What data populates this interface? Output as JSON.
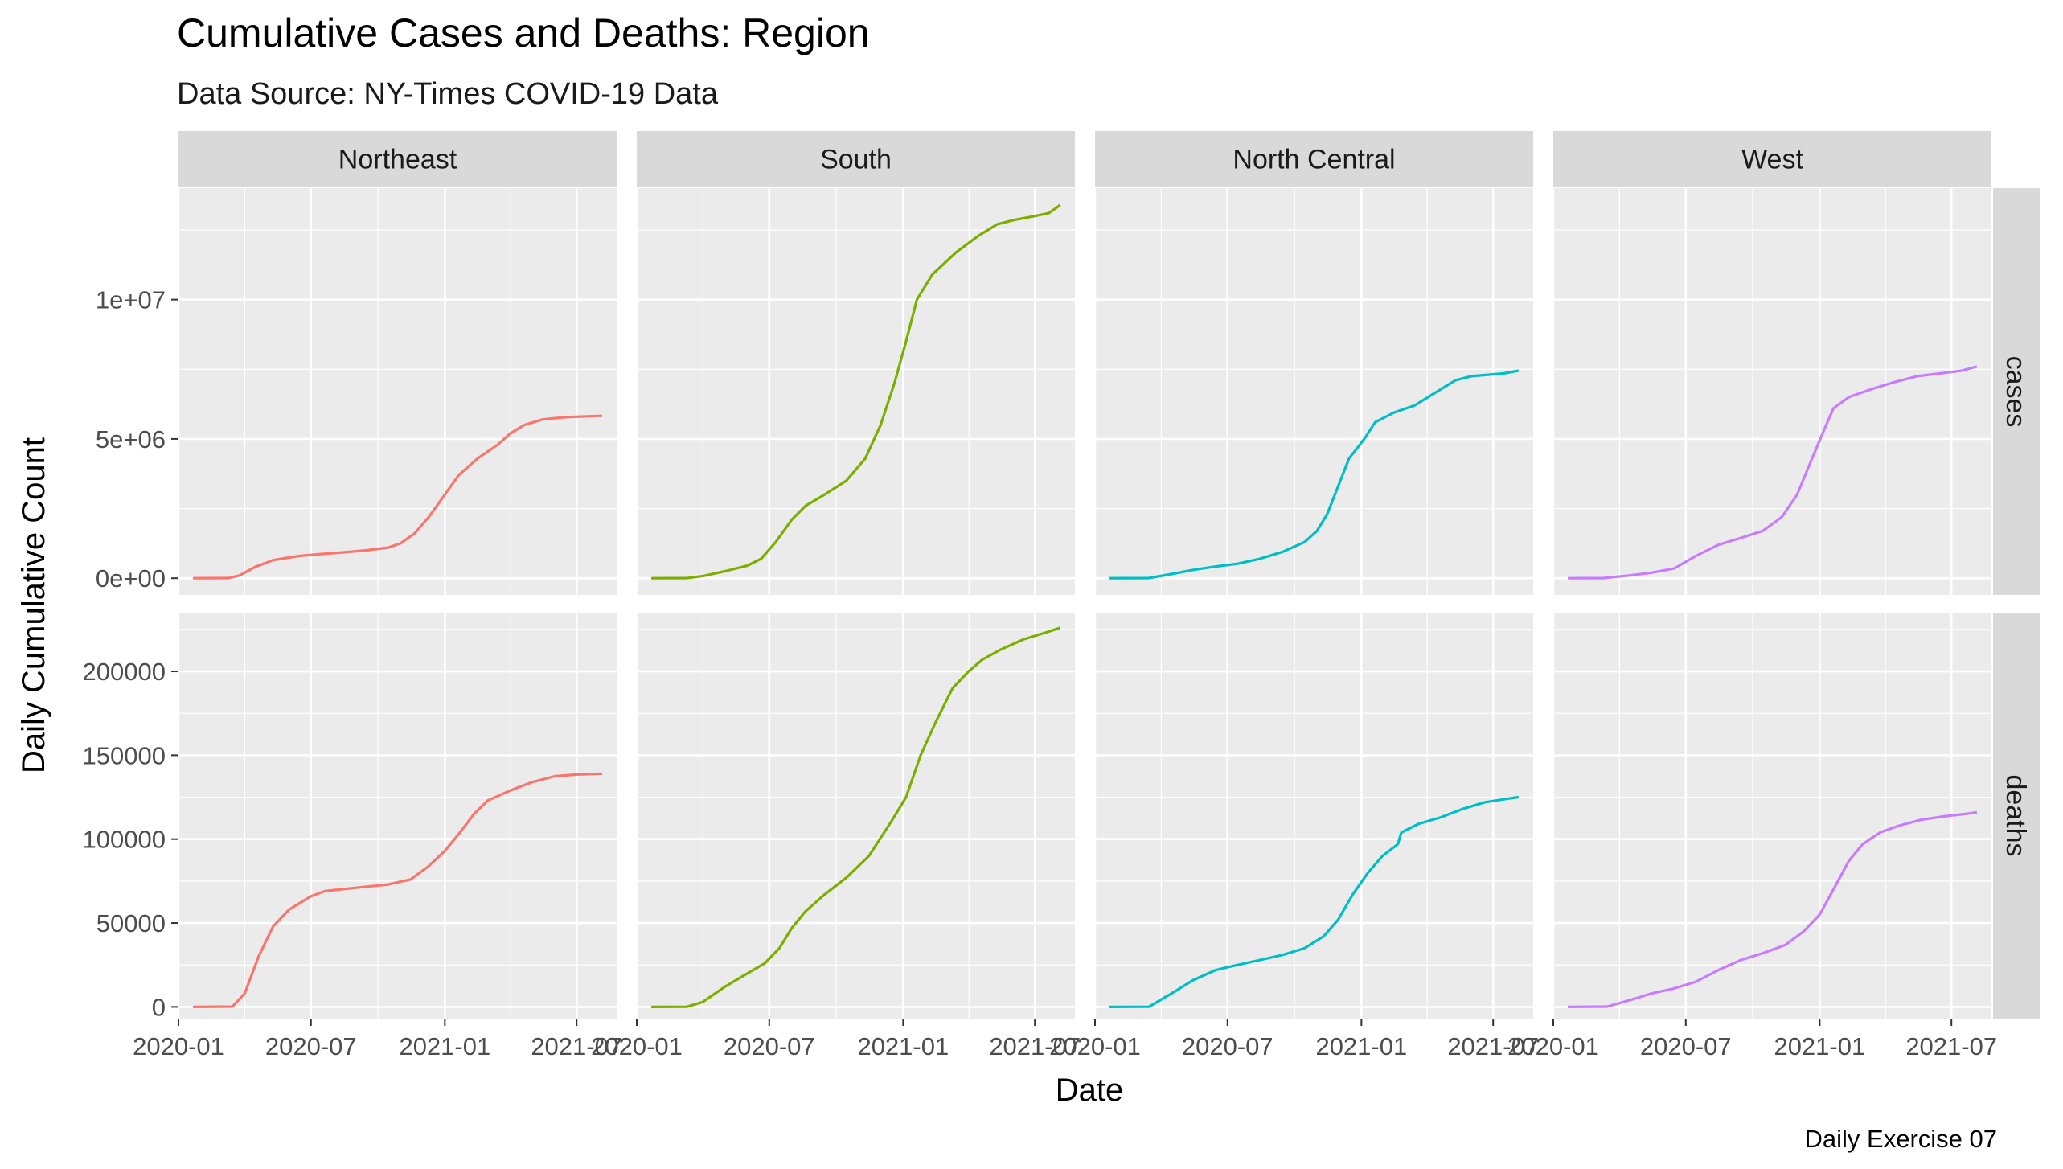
{
  "title": "Cumulative Cases and Deaths: Region",
  "subtitle": "Data Source: NY-Times COVID-19 Data",
  "caption": "Daily Exercise 07",
  "colors": {
    "panel_bg": "#ebebeb",
    "grid": "#ffffff",
    "strip_bg": "#d9d9d9",
    "text": "#1a1a1a",
    "axis_text": "#4d4d4d",
    "Northeast": "#f8766d",
    "South": "#7cae00",
    "North Central": "#00bfc4",
    "West": "#c77cff"
  },
  "chart_data": {
    "type": "line",
    "xlabel": "Date",
    "ylabel": "Daily Cumulative Count",
    "facet_cols": [
      "Northeast",
      "South",
      "North Central",
      "West"
    ],
    "facet_rows": [
      "cases",
      "deaths"
    ],
    "x_ticks": [
      "2020-01",
      "2020-07",
      "2021-01",
      "2021-07"
    ],
    "xlim": [
      "2020-01-01",
      "2021-08-25"
    ],
    "y_scales": {
      "cases": {
        "ylim": [
          -600000,
          14000000
        ],
        "ticks": [
          0,
          5000000,
          10000000
        ],
        "tick_labels": [
          "0e+00",
          "5e+06",
          "1e+07"
        ]
      },
      "deaths": {
        "ylim": [
          -7000,
          235000
        ],
        "ticks": [
          0,
          50000,
          100000,
          150000,
          200000
        ],
        "tick_labels": [
          "0",
          "50000",
          "100000",
          "150000",
          "200000"
        ]
      }
    },
    "series": [
      {
        "name": "Northeast",
        "metric": "cases",
        "points": [
          [
            "2020-01-21",
            0
          ],
          [
            "2020-03-10",
            5000
          ],
          [
            "2020-03-25",
            100000
          ],
          [
            "2020-04-15",
            400000
          ],
          [
            "2020-05-10",
            650000
          ],
          [
            "2020-06-15",
            800000
          ],
          [
            "2020-07-15",
            870000
          ],
          [
            "2020-08-15",
            930000
          ],
          [
            "2020-09-15",
            1000000
          ],
          [
            "2020-10-15",
            1100000
          ],
          [
            "2020-11-01",
            1250000
          ],
          [
            "2020-11-20",
            1600000
          ],
          [
            "2020-12-10",
            2200000
          ],
          [
            "2021-01-01",
            3000000
          ],
          [
            "2021-01-20",
            3700000
          ],
          [
            "2021-02-15",
            4300000
          ],
          [
            "2021-03-15",
            4800000
          ],
          [
            "2021-04-01",
            5200000
          ],
          [
            "2021-04-20",
            5500000
          ],
          [
            "2021-05-15",
            5700000
          ],
          [
            "2021-06-15",
            5780000
          ],
          [
            "2021-07-15",
            5810000
          ],
          [
            "2021-08-05",
            5830000
          ]
        ]
      },
      {
        "name": "South",
        "metric": "cases",
        "points": [
          [
            "2020-01-21",
            0
          ],
          [
            "2020-03-10",
            5000
          ],
          [
            "2020-04-01",
            80000
          ],
          [
            "2020-05-01",
            250000
          ],
          [
            "2020-06-01",
            450000
          ],
          [
            "2020-06-20",
            700000
          ],
          [
            "2020-07-10",
            1300000
          ],
          [
            "2020-08-01",
            2100000
          ],
          [
            "2020-08-20",
            2600000
          ],
          [
            "2020-09-15",
            3000000
          ],
          [
            "2020-10-15",
            3500000
          ],
          [
            "2020-11-10",
            4300000
          ],
          [
            "2020-12-01",
            5500000
          ],
          [
            "2020-12-20",
            7000000
          ],
          [
            "2021-01-05",
            8500000
          ],
          [
            "2021-01-20",
            10000000
          ],
          [
            "2021-02-10",
            10900000
          ],
          [
            "2021-03-15",
            11700000
          ],
          [
            "2021-04-15",
            12300000
          ],
          [
            "2021-05-10",
            12700000
          ],
          [
            "2021-06-01",
            12850000
          ],
          [
            "2021-07-01",
            13000000
          ],
          [
            "2021-07-20",
            13100000
          ],
          [
            "2021-08-05",
            13400000
          ]
        ]
      },
      {
        "name": "North Central",
        "metric": "cases",
        "points": [
          [
            "2020-01-21",
            0
          ],
          [
            "2020-03-15",
            5000
          ],
          [
            "2020-04-15",
            150000
          ],
          [
            "2020-05-15",
            300000
          ],
          [
            "2020-06-15",
            420000
          ],
          [
            "2020-07-15",
            520000
          ],
          [
            "2020-08-15",
            700000
          ],
          [
            "2020-09-15",
            950000
          ],
          [
            "2020-10-15",
            1300000
          ],
          [
            "2020-11-01",
            1700000
          ],
          [
            "2020-11-15",
            2300000
          ],
          [
            "2020-11-30",
            3300000
          ],
          [
            "2020-12-15",
            4300000
          ],
          [
            "2021-01-05",
            5000000
          ],
          [
            "2021-01-20",
            5600000
          ],
          [
            "2021-02-15",
            5950000
          ],
          [
            "2021-03-15",
            6200000
          ],
          [
            "2021-04-15",
            6700000
          ],
          [
            "2021-05-10",
            7100000
          ],
          [
            "2021-06-01",
            7250000
          ],
          [
            "2021-07-15",
            7350000
          ],
          [
            "2021-08-05",
            7450000
          ]
        ]
      },
      {
        "name": "West",
        "metric": "cases",
        "points": [
          [
            "2020-01-21",
            0
          ],
          [
            "2020-03-10",
            5000
          ],
          [
            "2020-04-15",
            100000
          ],
          [
            "2020-05-15",
            200000
          ],
          [
            "2020-06-15",
            350000
          ],
          [
            "2020-07-15",
            800000
          ],
          [
            "2020-08-15",
            1200000
          ],
          [
            "2020-09-15",
            1450000
          ],
          [
            "2020-10-15",
            1700000
          ],
          [
            "2020-11-10",
            2200000
          ],
          [
            "2020-12-01",
            3000000
          ],
          [
            "2020-12-20",
            4200000
          ],
          [
            "2021-01-05",
            5200000
          ],
          [
            "2021-01-20",
            6100000
          ],
          [
            "2021-02-10",
            6500000
          ],
          [
            "2021-03-15",
            6800000
          ],
          [
            "2021-04-15",
            7050000
          ],
          [
            "2021-05-15",
            7250000
          ],
          [
            "2021-06-15",
            7350000
          ],
          [
            "2021-07-15",
            7450000
          ],
          [
            "2021-08-05",
            7600000
          ]
        ]
      },
      {
        "name": "Northeast",
        "metric": "deaths",
        "points": [
          [
            "2020-01-21",
            0
          ],
          [
            "2020-03-15",
            200
          ],
          [
            "2020-04-01",
            8000
          ],
          [
            "2020-04-20",
            30000
          ],
          [
            "2020-05-10",
            48000
          ],
          [
            "2020-06-01",
            58000
          ],
          [
            "2020-06-20",
            63000
          ],
          [
            "2020-07-01",
            66000
          ],
          [
            "2020-07-20",
            69000
          ],
          [
            "2020-09-01",
            71000
          ],
          [
            "2020-10-15",
            73000
          ],
          [
            "2020-11-15",
            76000
          ],
          [
            "2020-12-10",
            84000
          ],
          [
            "2021-01-01",
            93000
          ],
          [
            "2021-01-20",
            103000
          ],
          [
            "2021-02-10",
            115000
          ],
          [
            "2021-03-01",
            123000
          ],
          [
            "2021-04-01",
            129000
          ],
          [
            "2021-05-01",
            134000
          ],
          [
            "2021-06-01",
            137500
          ],
          [
            "2021-07-01",
            138500
          ],
          [
            "2021-08-05",
            139000
          ]
        ]
      },
      {
        "name": "South",
        "metric": "deaths",
        "points": [
          [
            "2020-01-21",
            0
          ],
          [
            "2020-03-10",
            100
          ],
          [
            "2020-04-01",
            3000
          ],
          [
            "2020-05-01",
            12000
          ],
          [
            "2020-06-01",
            20000
          ],
          [
            "2020-06-25",
            26000
          ],
          [
            "2020-07-15",
            35000
          ],
          [
            "2020-08-01",
            47000
          ],
          [
            "2020-08-20",
            57000
          ],
          [
            "2020-09-15",
            67000
          ],
          [
            "2020-10-15",
            77000
          ],
          [
            "2020-11-15",
            90000
          ],
          [
            "2020-12-15",
            110000
          ],
          [
            "2021-01-05",
            125000
          ],
          [
            "2021-01-25",
            150000
          ],
          [
            "2021-02-15",
            170000
          ],
          [
            "2021-03-10",
            190000
          ],
          [
            "2021-04-01",
            200000
          ],
          [
            "2021-04-20",
            207000
          ],
          [
            "2021-05-15",
            213000
          ],
          [
            "2021-06-15",
            219000
          ],
          [
            "2021-07-15",
            223000
          ],
          [
            "2021-08-05",
            226000
          ]
        ]
      },
      {
        "name": "North Central",
        "metric": "deaths",
        "points": [
          [
            "2020-01-21",
            0
          ],
          [
            "2020-03-15",
            100
          ],
          [
            "2020-04-15",
            8000
          ],
          [
            "2020-05-15",
            16000
          ],
          [
            "2020-06-15",
            22000
          ],
          [
            "2020-07-15",
            25000
          ],
          [
            "2020-08-15",
            28000
          ],
          [
            "2020-09-15",
            31000
          ],
          [
            "2020-10-15",
            35000
          ],
          [
            "2020-11-10",
            42000
          ],
          [
            "2020-11-30",
            52000
          ],
          [
            "2020-12-20",
            67000
          ],
          [
            "2021-01-10",
            80000
          ],
          [
            "2021-01-30",
            90000
          ],
          [
            "2021-02-20",
            97000
          ],
          [
            "2021-02-25",
            104000
          ],
          [
            "2021-03-20",
            109000
          ],
          [
            "2021-04-20",
            113000
          ],
          [
            "2021-05-20",
            118000
          ],
          [
            "2021-06-20",
            122000
          ],
          [
            "2021-07-20",
            124000
          ],
          [
            "2021-08-05",
            125000
          ]
        ]
      },
      {
        "name": "West",
        "metric": "deaths",
        "points": [
          [
            "2020-01-21",
            0
          ],
          [
            "2020-03-15",
            200
          ],
          [
            "2020-04-15",
            4000
          ],
          [
            "2020-05-15",
            8000
          ],
          [
            "2020-06-15",
            11000
          ],
          [
            "2020-07-15",
            15000
          ],
          [
            "2020-08-15",
            22000
          ],
          [
            "2020-09-15",
            28000
          ],
          [
            "2020-10-15",
            32000
          ],
          [
            "2020-11-15",
            37000
          ],
          [
            "2020-12-10",
            45000
          ],
          [
            "2021-01-01",
            55000
          ],
          [
            "2021-01-20",
            70000
          ],
          [
            "2021-02-10",
            87000
          ],
          [
            "2021-03-01",
            97000
          ],
          [
            "2021-03-25",
            104000
          ],
          [
            "2021-04-20",
            108000
          ],
          [
            "2021-05-20",
            111500
          ],
          [
            "2021-06-20",
            113500
          ],
          [
            "2021-07-20",
            115000
          ],
          [
            "2021-08-05",
            116000
          ]
        ]
      }
    ]
  }
}
